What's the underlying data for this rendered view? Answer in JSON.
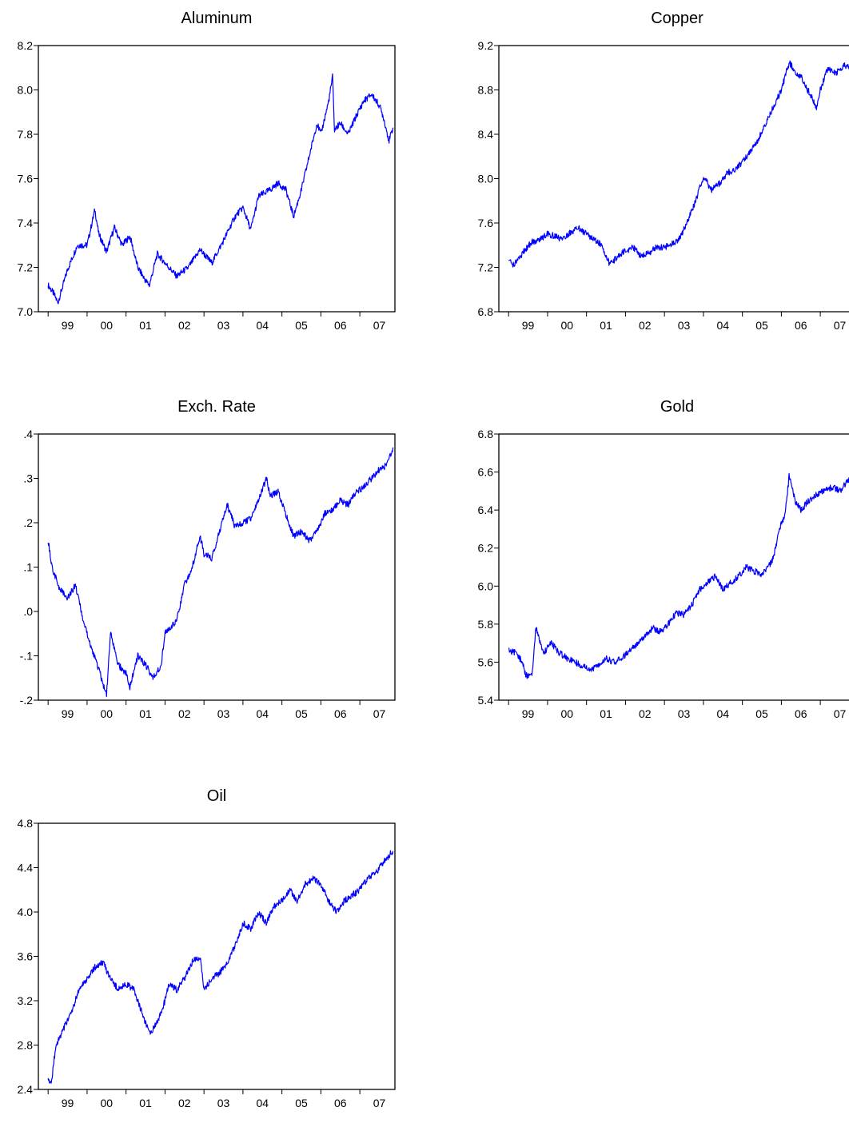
{
  "line_color": "#0000ff",
  "chart_data": [
    {
      "type": "line",
      "title": "Aluminum",
      "x_ticks": [
        "99",
        "00",
        "01",
        "02",
        "03",
        "04",
        "05",
        "06",
        "07"
      ],
      "y_ticks": [
        "7.0",
        "7.2",
        "7.4",
        "7.6",
        "7.8",
        "8.0",
        "8.2"
      ],
      "ylim": [
        7.0,
        8.2
      ],
      "x": [
        1999.0,
        1999.15,
        1999.25,
        1999.5,
        1999.75,
        2000.0,
        2000.2,
        2000.3,
        2000.5,
        2000.7,
        2000.9,
        2001.1,
        2001.3,
        2001.5,
        2001.6,
        2001.8,
        2002.0,
        2002.3,
        2002.6,
        2002.9,
        2003.2,
        2003.5,
        2003.8,
        2004.0,
        2004.2,
        2004.4,
        2004.7,
        2004.9,
        2005.1,
        2005.3,
        2005.5,
        2005.7,
        2005.9,
        2006.0,
        2006.2,
        2006.3,
        2006.35,
        2006.5,
        2006.7,
        2006.9,
        2007.1,
        2007.3,
        2007.5,
        2007.6,
        2007.75,
        2007.85
      ],
      "y": [
        7.12,
        7.08,
        7.04,
        7.19,
        7.3,
        7.3,
        7.46,
        7.35,
        7.27,
        7.38,
        7.3,
        7.34,
        7.2,
        7.14,
        7.12,
        7.26,
        7.22,
        7.16,
        7.2,
        7.28,
        7.22,
        7.32,
        7.43,
        7.47,
        7.37,
        7.52,
        7.55,
        7.58,
        7.55,
        7.43,
        7.55,
        7.7,
        7.85,
        7.8,
        7.95,
        8.06,
        7.82,
        7.85,
        7.8,
        7.88,
        7.95,
        7.98,
        7.93,
        7.88,
        7.77,
        7.83
      ]
    },
    {
      "type": "line",
      "title": "Copper",
      "x_ticks": [
        "99",
        "00",
        "01",
        "02",
        "03",
        "04",
        "05",
        "06",
        "07"
      ],
      "y_ticks": [
        "6.8",
        "7.2",
        "7.6",
        "8.0",
        "8.4",
        "8.8",
        "9.2"
      ],
      "ylim": [
        6.8,
        9.2
      ],
      "x": [
        1999.0,
        1999.1,
        1999.2,
        1999.4,
        1999.6,
        1999.8,
        2000.0,
        2000.2,
        2000.4,
        2000.6,
        2000.8,
        2001.0,
        2001.2,
        2001.4,
        2001.5,
        2001.6,
        2001.8,
        2002.0,
        2002.2,
        2002.4,
        2002.6,
        2002.8,
        2003.0,
        2003.2,
        2003.4,
        2003.6,
        2003.8,
        2004.0,
        2004.2,
        2004.4,
        2004.6,
        2004.8,
        2005.0,
        2005.2,
        2005.4,
        2005.6,
        2005.8,
        2006.0,
        2006.2,
        2006.4,
        2006.5,
        2006.6,
        2006.8,
        2006.9,
        2007.0,
        2007.2,
        2007.4,
        2007.6,
        2007.85
      ],
      "y": [
        7.26,
        7.22,
        7.25,
        7.35,
        7.43,
        7.45,
        7.5,
        7.48,
        7.45,
        7.52,
        7.56,
        7.5,
        7.45,
        7.4,
        7.3,
        7.22,
        7.3,
        7.35,
        7.38,
        7.3,
        7.33,
        7.38,
        7.38,
        7.42,
        7.46,
        7.62,
        7.8,
        8.02,
        7.9,
        7.95,
        8.05,
        8.08,
        8.15,
        8.25,
        8.35,
        8.5,
        8.65,
        8.8,
        9.05,
        8.95,
        8.92,
        8.85,
        8.72,
        8.62,
        8.8,
        9.0,
        8.95,
        9.02,
        9.0
      ]
    },
    {
      "type": "line",
      "title": "Exch. Rate",
      "x_ticks": [
        "99",
        "00",
        "01",
        "02",
        "03",
        "04",
        "05",
        "06",
        "07"
      ],
      "y_ticks": [
        "-.2",
        "-.1",
        ".0",
        ".1",
        ".2",
        ".3",
        ".4"
      ],
      "ylim": [
        -0.2,
        0.4
      ],
      "x": [
        1999.0,
        1999.1,
        1999.3,
        1999.5,
        1999.7,
        1999.9,
        2000.1,
        2000.3,
        2000.5,
        2000.6,
        2000.8,
        2001.0,
        2001.1,
        2001.3,
        2001.5,
        2001.7,
        2001.9,
        2002.0,
        2002.3,
        2002.5,
        2002.7,
        2002.9,
        2003.0,
        2003.2,
        2003.4,
        2003.6,
        2003.8,
        2004.0,
        2004.2,
        2004.4,
        2004.6,
        2004.7,
        2004.9,
        2005.1,
        2005.3,
        2005.5,
        2005.7,
        2005.9,
        2006.1,
        2006.3,
        2006.5,
        2006.7,
        2006.9,
        2007.1,
        2007.3,
        2007.5,
        2007.7,
        2007.85
      ],
      "y": [
        0.16,
        0.1,
        0.05,
        0.03,
        0.06,
        -0.02,
        -0.08,
        -0.13,
        -0.19,
        -0.05,
        -0.12,
        -0.14,
        -0.17,
        -0.1,
        -0.12,
        -0.15,
        -0.12,
        -0.05,
        -0.02,
        0.06,
        0.1,
        0.17,
        0.13,
        0.12,
        0.18,
        0.24,
        0.19,
        0.2,
        0.21,
        0.25,
        0.3,
        0.26,
        0.27,
        0.22,
        0.17,
        0.18,
        0.16,
        0.18,
        0.22,
        0.23,
        0.25,
        0.24,
        0.27,
        0.28,
        0.3,
        0.32,
        0.33,
        0.37
      ]
    },
    {
      "type": "line",
      "title": "Gold",
      "x_ticks": [
        "99",
        "00",
        "01",
        "02",
        "03",
        "04",
        "05",
        "06",
        "07"
      ],
      "y_ticks": [
        "5.4",
        "5.6",
        "5.8",
        "6.0",
        "6.2",
        "6.4",
        "6.6",
        "6.8"
      ],
      "ylim": [
        5.4,
        6.8
      ],
      "x": [
        1999.0,
        1999.2,
        1999.35,
        1999.45,
        1999.6,
        1999.7,
        1999.9,
        2000.1,
        2000.3,
        2000.5,
        2000.7,
        2000.9,
        2001.1,
        2001.3,
        2001.5,
        2001.7,
        2001.9,
        2002.1,
        2002.3,
        2002.5,
        2002.7,
        2002.9,
        2003.1,
        2003.3,
        2003.5,
        2003.7,
        2003.9,
        2004.1,
        2004.3,
        2004.5,
        2004.7,
        2004.9,
        2005.1,
        2005.3,
        2005.5,
        2005.6,
        2005.8,
        2005.95,
        2006.1,
        2006.2,
        2006.35,
        2006.5,
        2006.7,
        2006.9,
        2007.1,
        2007.3,
        2007.5,
        2007.7,
        2007.85
      ],
      "y": [
        5.66,
        5.65,
        5.6,
        5.53,
        5.53,
        5.78,
        5.65,
        5.7,
        5.65,
        5.62,
        5.6,
        5.58,
        5.56,
        5.58,
        5.62,
        5.6,
        5.62,
        5.66,
        5.7,
        5.74,
        5.78,
        5.76,
        5.8,
        5.86,
        5.85,
        5.9,
        5.98,
        6.02,
        6.05,
        5.98,
        6.02,
        6.05,
        6.1,
        6.08,
        6.06,
        6.08,
        6.15,
        6.3,
        6.38,
        6.58,
        6.45,
        6.4,
        6.45,
        6.48,
        6.5,
        6.52,
        6.5,
        6.55,
        6.6
      ]
    },
    {
      "type": "line",
      "title": "Oil",
      "x_ticks": [
        "99",
        "00",
        "01",
        "02",
        "03",
        "04",
        "05",
        "06",
        "07"
      ],
      "y_ticks": [
        "2.4",
        "2.8",
        "3.2",
        "3.6",
        "4.0",
        "4.4",
        "4.8"
      ],
      "ylim": [
        2.4,
        4.8
      ],
      "x": [
        1999.0,
        1999.08,
        1999.2,
        1999.4,
        1999.6,
        1999.8,
        2000.0,
        2000.2,
        2000.4,
        2000.6,
        2000.8,
        2001.0,
        2001.2,
        2001.4,
        2001.6,
        2001.8,
        2002.0,
        2002.1,
        2002.3,
        2002.5,
        2002.7,
        2002.9,
        2003.0,
        2003.2,
        2003.4,
        2003.6,
        2003.8,
        2004.0,
        2004.2,
        2004.4,
        2004.6,
        2004.8,
        2005.0,
        2005.2,
        2005.4,
        2005.6,
        2005.8,
        2006.0,
        2006.2,
        2006.4,
        2006.6,
        2006.8,
        2007.0,
        2007.2,
        2007.4,
        2007.6,
        2007.85
      ],
      "y": [
        2.5,
        2.45,
        2.8,
        2.95,
        3.1,
        3.3,
        3.4,
        3.5,
        3.55,
        3.4,
        3.3,
        3.35,
        3.3,
        3.1,
        2.9,
        3.0,
        3.2,
        3.35,
        3.3,
        3.4,
        3.55,
        3.6,
        3.3,
        3.4,
        3.45,
        3.55,
        3.7,
        3.9,
        3.85,
        4.0,
        3.9,
        4.05,
        4.1,
        4.2,
        4.1,
        4.25,
        4.3,
        4.25,
        4.1,
        4.0,
        4.1,
        4.15,
        4.2,
        4.3,
        4.35,
        4.45,
        4.55
      ]
    }
  ]
}
